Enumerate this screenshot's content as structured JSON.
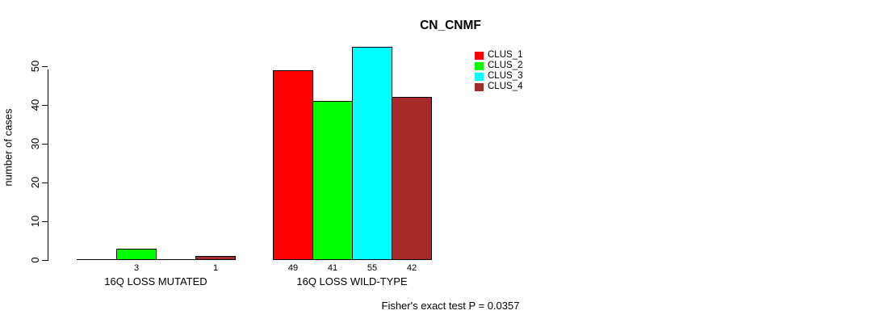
{
  "chart_data": {
    "type": "bar",
    "title": "CN_CNMF",
    "ylabel": "number of cases",
    "xlabel": "",
    "ylim": [
      0,
      55
    ],
    "yticks": [
      0,
      10,
      20,
      30,
      40,
      50
    ],
    "grid": false,
    "legend_position": "top-right",
    "series": [
      {
        "name": "CLUS_1",
        "color": "#FF0000"
      },
      {
        "name": "CLUS_2",
        "color": "#00FF00"
      },
      {
        "name": "CLUS_3",
        "color": "#00FFFF"
      },
      {
        "name": "CLUS_4",
        "color": "#A52A2A"
      }
    ],
    "groups": [
      {
        "label": "16Q LOSS MUTATED",
        "values": [
          0,
          3,
          0,
          1
        ],
        "bar_labels": [
          "",
          "3",
          "",
          "1"
        ]
      },
      {
        "label": "16Q LOSS WILD-TYPE",
        "values": [
          49,
          41,
          55,
          42
        ],
        "bar_labels": [
          "49",
          "41",
          "55",
          "42"
        ]
      }
    ],
    "annotation": "Fisher's exact test P = 0.0357",
    "axis_color": "#000000",
    "background_color": "#FFFFFF"
  }
}
